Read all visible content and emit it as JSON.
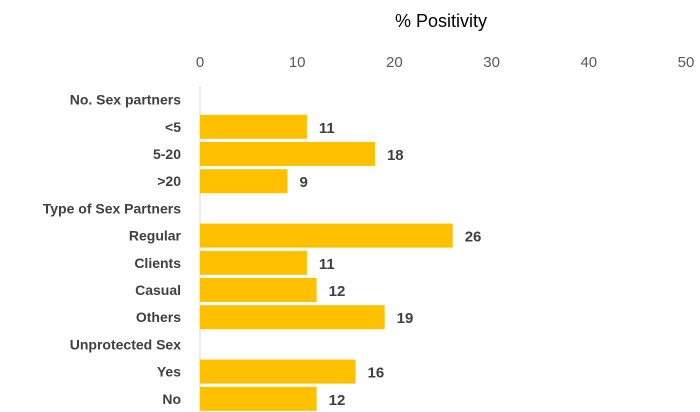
{
  "chart_data": {
    "type": "bar",
    "orientation": "horizontal",
    "xlabel": "% Positivity",
    "xlim": [
      0,
      50
    ],
    "xticks": [
      0,
      10,
      20,
      30,
      40,
      50
    ],
    "grid": false,
    "bar_color": "#FFC000",
    "rows": [
      {
        "label": "No. Sex partners",
        "value": null
      },
      {
        "label": "<5",
        "value": 11
      },
      {
        "label": "5-20",
        "value": 18
      },
      {
        "label": ">20",
        "value": 9
      },
      {
        "label": "Type of Sex Partners",
        "value": null
      },
      {
        "label": "Regular",
        "value": 26
      },
      {
        "label": "Clients",
        "value": 11
      },
      {
        "label": "Casual",
        "value": 12
      },
      {
        "label": "Others",
        "value": 19
      },
      {
        "label": "Unprotected Sex",
        "value": null
      },
      {
        "label": "Yes",
        "value": 16
      },
      {
        "label": "No",
        "value": 12
      }
    ]
  }
}
